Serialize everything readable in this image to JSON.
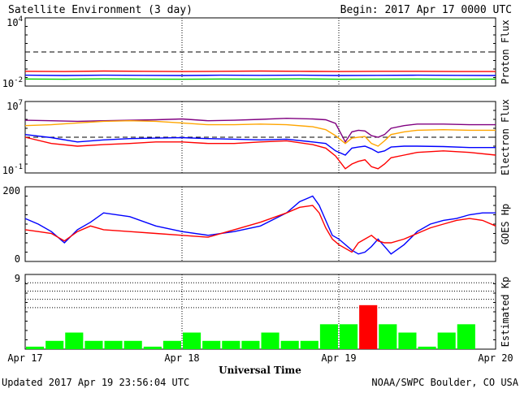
{
  "header": {
    "title": "Satellite Environment (3 day)",
    "begin": "Begin:  2017 Apr 17 0000 UTC"
  },
  "footer": {
    "updated": "Updated 2017 Apr 19 23:56:04 UTC",
    "credit": "NOAA/SWPC Boulder, CO USA"
  },
  "chart_data": [
    {
      "type": "line",
      "ylabel": "Proton Flux",
      "yscale": "log",
      "ylim": [
        0.01,
        10000
      ],
      "ytick_labels": [
        {
          "base": "10",
          "exp": "4",
          "value": 10000
        },
        {
          "base": "10",
          "exp": "-2",
          "value": 0.01
        }
      ],
      "threshold": 10,
      "x": [
        0,
        6,
        12,
        18,
        24,
        30,
        36,
        42,
        48,
        54,
        60,
        66,
        72
      ],
      "series": [
        {
          "color": "#ff0000",
          "values": [
            0.2,
            0.19,
            0.21,
            0.2,
            0.19,
            0.2,
            0.21,
            0.2,
            0.19,
            0.2,
            0.2,
            0.19,
            0.19
          ]
        },
        {
          "color": "#0000ff",
          "values": [
            0.09,
            0.085,
            0.09,
            0.088,
            0.085,
            0.09,
            0.088,
            0.09,
            0.085,
            0.088,
            0.09,
            0.087,
            0.085
          ]
        },
        {
          "color": "#00cc00",
          "values": [
            0.042,
            0.04,
            0.043,
            0.041,
            0.04,
            0.042,
            0.041,
            0.043,
            0.04,
            0.041,
            0.042,
            0.04,
            0.041
          ]
        }
      ]
    },
    {
      "type": "line",
      "ylabel": "Electron Flux",
      "yscale": "log",
      "ylim": [
        0.1,
        10000000
      ],
      "ytick_labels": [
        {
          "base": "10",
          "exp": "7",
          "value": 10000000
        },
        {
          "base": "10",
          "exp": "-1",
          "value": 0.1
        }
      ],
      "threshold": 1000,
      "x": [
        0,
        4,
        8,
        12,
        16,
        20,
        24,
        28,
        32,
        36,
        40,
        44,
        46,
        47.5,
        49,
        50,
        51,
        52,
        53,
        54,
        55,
        56,
        58,
        60,
        64,
        68,
        72
      ],
      "series": [
        {
          "color": "#800080",
          "values": [
            80000,
            70000,
            60000,
            70000,
            80000,
            90000,
            110000,
            70000,
            80000,
            100000,
            130000,
            110000,
            90000,
            35000,
            300,
            4000,
            6000,
            5000,
            1500,
            1000,
            2000,
            10000,
            20000,
            30000,
            30000,
            25000,
            25000
          ]
        },
        {
          "color": "#ffa500",
          "values": [
            20000,
            25000,
            40000,
            60000,
            70000,
            60000,
            40000,
            25000,
            25000,
            30000,
            25000,
            15000,
            7000,
            1500,
            200,
            800,
            1000,
            1200,
            200,
            100,
            400,
            2000,
            4000,
            6000,
            7000,
            6000,
            6000
          ]
        },
        {
          "color": "#0000ff",
          "values": [
            2000,
            900,
            300,
            500,
            700,
            800,
            900,
            700,
            600,
            500,
            600,
            300,
            200,
            30,
            10,
            60,
            80,
            100,
            50,
            20,
            30,
            80,
            100,
            100,
            90,
            70,
            70
          ]
        },
        {
          "color": "#ff0000",
          "values": [
            1000,
            200,
            100,
            150,
            200,
            300,
            300,
            200,
            200,
            300,
            400,
            150,
            60,
            8,
            0.3,
            1,
            2,
            3,
            0.5,
            0.3,
            1,
            5,
            10,
            20,
            30,
            20,
            10
          ]
        }
      ]
    },
    {
      "type": "line",
      "ylabel": "GOES Hp",
      "yscale": "linear",
      "ylim": [
        0,
        200
      ],
      "ytick_labels": [
        "200",
        "0"
      ],
      "x": [
        0,
        2,
        4,
        6,
        8,
        10,
        12,
        16,
        20,
        24,
        28,
        32,
        36,
        40,
        42,
        44,
        45,
        46,
        47,
        48,
        50,
        51,
        52,
        53,
        54,
        55,
        56,
        58,
        60,
        62,
        64,
        66,
        68,
        70,
        72
      ],
      "series": [
        {
          "color": "#0000ff",
          "values": [
            115,
            100,
            80,
            50,
            85,
            105,
            130,
            120,
            95,
            80,
            70,
            80,
            95,
            130,
            160,
            175,
            150,
            110,
            70,
            60,
            30,
            20,
            25,
            40,
            60,
            40,
            20,
            45,
            80,
            100,
            110,
            115,
            125,
            130,
            130
          ]
        },
        {
          "color": "#ff0000",
          "values": [
            85,
            80,
            75,
            55,
            80,
            95,
            85,
            80,
            75,
            70,
            65,
            85,
            105,
            130,
            145,
            150,
            130,
            90,
            60,
            45,
            25,
            50,
            60,
            70,
            55,
            50,
            50,
            60,
            75,
            90,
            100,
            110,
            115,
            110,
            95
          ]
        }
      ]
    },
    {
      "type": "bar",
      "ylabel": "Estimated Kp",
      "ylim": [
        0,
        9
      ],
      "ytick_labels": [
        "9"
      ],
      "gridlines": [
        5,
        6,
        7,
        8
      ],
      "x_starts": [
        0,
        3,
        6,
        9,
        12,
        15,
        18,
        21,
        24,
        27,
        30,
        33,
        36,
        39,
        42,
        45,
        48,
        51,
        54,
        57,
        60,
        63,
        66,
        69
      ],
      "values": [
        0.3,
        1,
        2,
        1,
        1,
        1,
        0.3,
        1,
        2,
        1,
        1,
        1,
        2,
        1,
        1,
        3,
        3,
        5.3,
        3,
        2,
        0.3,
        2,
        3,
        0
      ],
      "colors": [
        "#00ff00",
        "#00ff00",
        "#00ff00",
        "#00ff00",
        "#00ff00",
        "#00ff00",
        "#00ff00",
        "#00ff00",
        "#00ff00",
        "#00ff00",
        "#00ff00",
        "#00ff00",
        "#00ff00",
        "#00ff00",
        "#00ff00",
        "#00ff00",
        "#00ff00",
        "#ff0000",
        "#00ff00",
        "#00ff00",
        "#00ff00",
        "#00ff00",
        "#00ff00",
        "#00ff00"
      ]
    }
  ],
  "xaxis": {
    "label": "Universal Time",
    "ticks": [
      {
        "hour": 0,
        "label": "Apr 17"
      },
      {
        "hour": 24,
        "label": "Apr 18"
      },
      {
        "hour": 48,
        "label": "Apr 19"
      },
      {
        "hour": 72,
        "label": "Apr 20"
      }
    ],
    "range_hours": [
      0,
      72
    ],
    "now_hour": 48
  }
}
